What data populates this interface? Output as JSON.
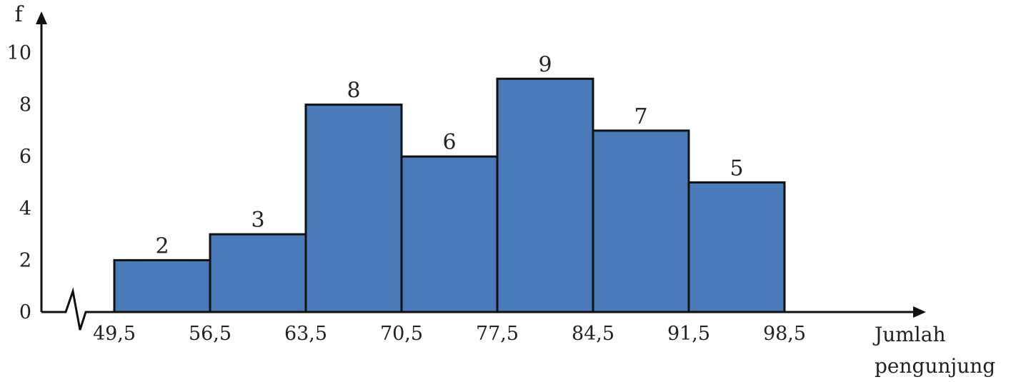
{
  "chart_data": {
    "type": "bar",
    "histogram": true,
    "bin_edges": [
      49.5,
      56.5,
      63.5,
      70.5,
      77.5,
      84.5,
      91.5,
      98.5
    ],
    "x_tick_labels": [
      "49,5",
      "56,5",
      "63,5",
      "70,5",
      "77,5",
      "84,5",
      "91,5",
      "98,5"
    ],
    "values": [
      2,
      3,
      8,
      6,
      9,
      7,
      5
    ],
    "data_labels": [
      "2",
      "3",
      "8",
      "6",
      "9",
      "7",
      "5"
    ],
    "ylabel": "f",
    "xlabel_lines": [
      "Jumlah",
      "pengunjung"
    ],
    "y_ticks": [
      0,
      2,
      4,
      6,
      8,
      10
    ],
    "y_tick_labels": [
      "0",
      "2",
      "4",
      "6",
      "8",
      "10"
    ],
    "ylim": [
      0,
      10
    ],
    "axis_break": true,
    "grid": false,
    "colors": {
      "bar": "#4a7ab8",
      "outline": "#111111"
    }
  }
}
